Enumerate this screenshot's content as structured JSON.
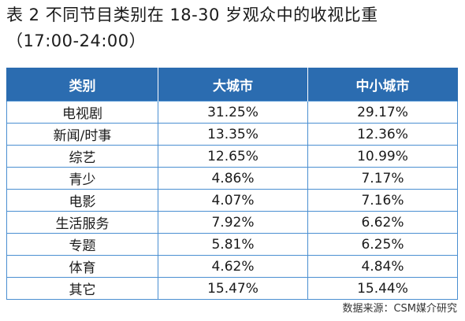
{
  "title": {
    "line1": "表 2  不同节目类别在 18-30 岁观众中的收视比重",
    "line2": "（17:00-24:00）"
  },
  "table": {
    "headers": [
      "类别",
      "大城市",
      "中小城市"
    ],
    "rows": [
      [
        "电视剧",
        "31.25%",
        "29.17%"
      ],
      [
        "新闻/时事",
        "13.35%",
        "12.36%"
      ],
      [
        "综艺",
        "12.65%",
        "10.99%"
      ],
      [
        "青少",
        "4.86%",
        "7.17%"
      ],
      [
        "电影",
        "4.07%",
        "7.16%"
      ],
      [
        "生活服务",
        "7.92%",
        "6.62%"
      ],
      [
        "专题",
        "5.81%",
        "6.25%"
      ],
      [
        "体育",
        "4.62%",
        "4.84%"
      ],
      [
        "其它",
        "15.47%",
        "15.44%"
      ]
    ]
  },
  "source": "数据来源：CSM媒介研究",
  "colors": {
    "header_bg": "#2b6cb0",
    "header_text": "#ffffff",
    "grid": "#4a8fd1"
  }
}
